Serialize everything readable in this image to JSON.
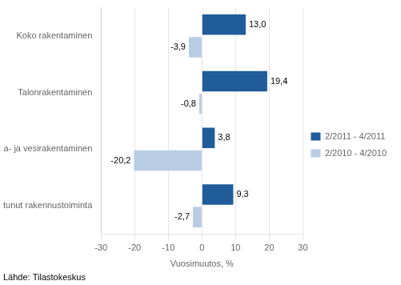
{
  "chart_data": {
    "type": "bar",
    "orientation": "horizontal",
    "categories": [
      "Erikoistunut rakennustoiminta",
      "Maa- ja vesirakentaminen",
      "Talonrakentaminen",
      "Koko rakentaminen"
    ],
    "series": [
      {
        "name": "2/2011 - 4/2011",
        "color": "#1F5C99",
        "values": [
          9.3,
          3.8,
          19.4,
          13.0
        ],
        "value_labels": [
          "9,3",
          "3,8",
          "19,4",
          "13,0"
        ]
      },
      {
        "name": "2/2010 - 4/2010",
        "color": "#B8CCE4",
        "values": [
          -2.7,
          -20.2,
          -0.8,
          -3.9
        ],
        "value_labels": [
          "-2,7",
          "-20,2",
          "-0,8",
          "-3,9"
        ]
      }
    ],
    "xlabel": "Vuosimuutos, %",
    "xlim": [
      -30,
      30
    ],
    "xticks": [
      -30,
      -20,
      -10,
      0,
      10,
      20,
      30
    ],
    "grid": true,
    "legend": "right",
    "data_labels": true,
    "annotations": [
      "Lähde: Tilastokeskus"
    ]
  }
}
